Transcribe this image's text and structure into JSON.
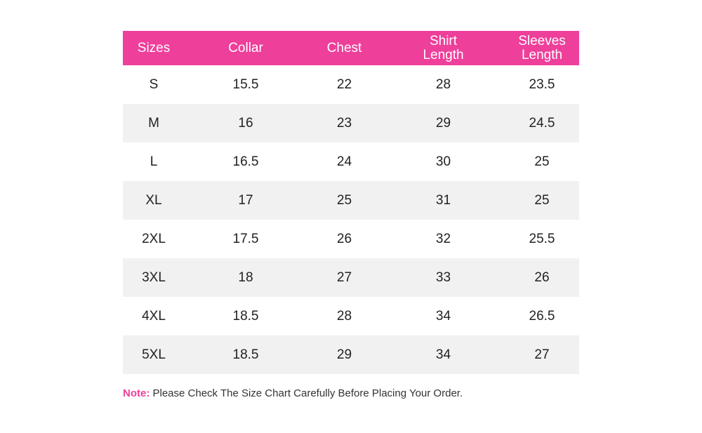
{
  "table": {
    "headers": [
      [
        "Sizes"
      ],
      [
        "Collar"
      ],
      [
        "Chest"
      ],
      [
        "Shirt",
        "Length"
      ],
      [
        "Sleeves",
        "Length"
      ]
    ],
    "rows": [
      [
        "S",
        "15.5",
        "22",
        "28",
        "23.5"
      ],
      [
        "M",
        "16",
        "23",
        "29",
        "24.5"
      ],
      [
        "L",
        "16.5",
        "24",
        "30",
        "25"
      ],
      [
        "XL",
        "17",
        "25",
        "31",
        "25"
      ],
      [
        "2XL",
        "17.5",
        "26",
        "32",
        "25.5"
      ],
      [
        "3XL",
        "18",
        "27",
        "33",
        "26"
      ],
      [
        "4XL",
        "18.5",
        "28",
        "34",
        "26.5"
      ],
      [
        "5XL",
        "18.5",
        "29",
        "34",
        "27"
      ]
    ]
  },
  "note": {
    "label": "Note:",
    "text": " Please Check The Size Chart Carefully Before Placing Your Order."
  },
  "colors": {
    "header_background": "#ee3f9a",
    "header_text": "#ffffff",
    "shaded_row": "#f1f1f1",
    "note_label": "#ee3f9a"
  }
}
